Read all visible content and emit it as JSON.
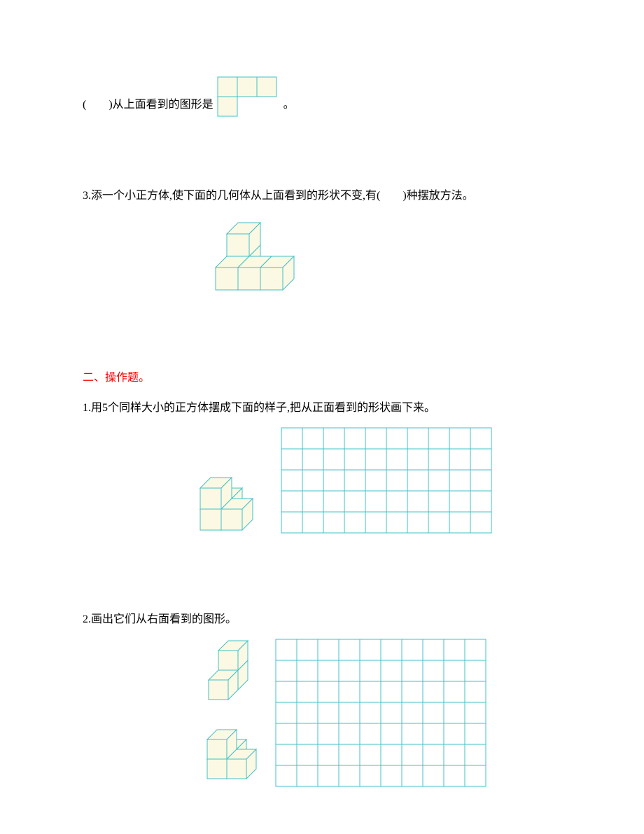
{
  "cubeStyle": {
    "faceFill": "#fbf9e3",
    "stroke": "#42c0c7",
    "strokeWidth": 1
  },
  "gridStyle": {
    "cell": 30,
    "stroke": "#42c0c7",
    "strokeWidth": 1,
    "fill": "#ffffff"
  },
  "q2_topShape": {
    "pre": "(　　)从上面看到的图形是",
    "post": "。",
    "cells": [
      [
        0,
        0
      ],
      [
        1,
        0
      ],
      [
        2,
        0
      ],
      [
        0,
        1
      ]
    ],
    "cellSize": 30
  },
  "q3": {
    "text": "3.添一个小正方体,使下面的几何体从上面看到的形状不变,有(　　)种摆放方法。"
  },
  "section2": {
    "heading": "二、操作题。",
    "q1": "1.用5个同样大小的正方体摆成下面的样子,把从正面看到的形状画下来。",
    "q2": "2.画出它们从右面看到的图形。"
  },
  "grids": {
    "s2q1": {
      "cols": 10,
      "rows": 5
    },
    "s2q2": {
      "cols": 10,
      "rows": 7
    }
  }
}
